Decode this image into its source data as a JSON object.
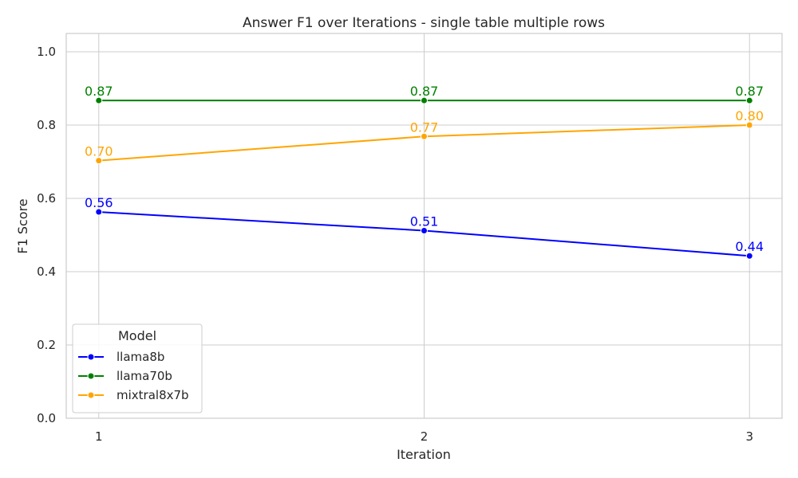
{
  "chart_data": {
    "type": "line",
    "title": "Answer F1 over Iterations - single table multiple rows",
    "xlabel": "Iteration",
    "ylabel": "F1 Score",
    "x": [
      1,
      2,
      3
    ],
    "x_ticks": [
      "1",
      "2",
      "3"
    ],
    "ylim": [
      0,
      1.05
    ],
    "y_ticks": [
      "0.0",
      "0.2",
      "0.4",
      "0.6",
      "0.8",
      "1.0"
    ],
    "grid": true,
    "legend": {
      "title": "Model",
      "position": "lower-left"
    },
    "series": [
      {
        "name": "llama8b",
        "color": "#0000ff",
        "values": [
          0.563,
          0.512,
          0.443
        ],
        "labels": [
          "0.56",
          "0.51",
          "0.44"
        ]
      },
      {
        "name": "llama70b",
        "color": "#008000",
        "values": [
          0.867,
          0.867,
          0.867
        ],
        "labels": [
          "0.87",
          "0.87",
          "0.87"
        ]
      },
      {
        "name": "mixtral8x7b",
        "color": "#ffa500",
        "values": [
          0.703,
          0.769,
          0.8
        ],
        "labels": [
          "0.70",
          "0.77",
          "0.80"
        ]
      }
    ]
  }
}
